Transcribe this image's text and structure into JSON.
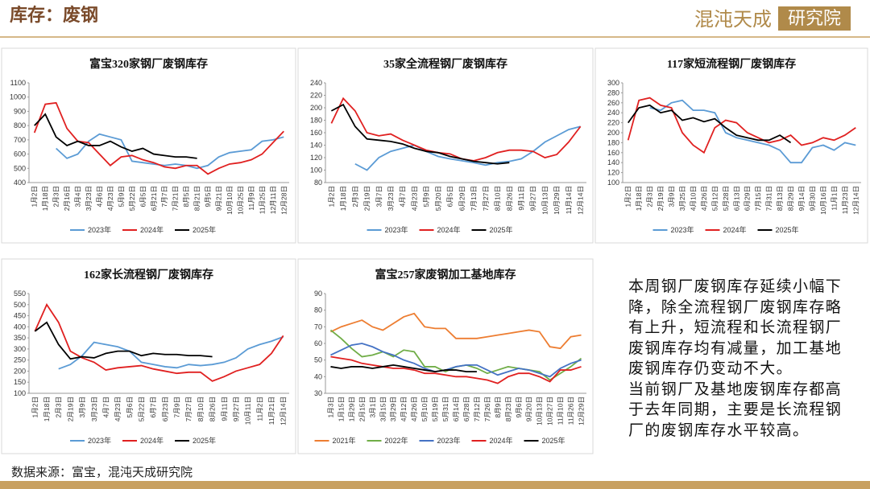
{
  "header": {
    "title": "库存：废钢",
    "logo_main": "混沌天成",
    "logo_box": "研究院"
  },
  "chart_data": [
    {
      "type": "line",
      "title": "富宝320家钢厂废钢库存",
      "categories": [
        "1月2日",
        "1月18日",
        "2月3日",
        "2月16日",
        "3月4日",
        "3月23日",
        "4月6日",
        "4月23日",
        "5月9日",
        "5月22日",
        "6月5日",
        "6月21日",
        "7月7日",
        "7月21日",
        "8月5日",
        "8月21日",
        "9月5日",
        "9月21日",
        "10月10日",
        "10月25日",
        "11月9日",
        "11月25日",
        "12月11日",
        "12月28日"
      ],
      "ylim": [
        400,
        1100
      ],
      "yticks": [
        400,
        500,
        600,
        700,
        800,
        900,
        1000,
        1100
      ],
      "series": [
        {
          "name": "2023年",
          "color": "#5b9bd5",
          "values": [
            null,
            null,
            640,
            570,
            600,
            690,
            740,
            720,
            700,
            550,
            540,
            530,
            520,
            530,
            520,
            500,
            520,
            580,
            610,
            620,
            630,
            690,
            700,
            720
          ]
        },
        {
          "name": "2024年",
          "color": "#e02020",
          "values": [
            750,
            950,
            960,
            780,
            690,
            680,
            600,
            520,
            580,
            590,
            560,
            540,
            510,
            500,
            520,
            520,
            460,
            500,
            530,
            540,
            560,
            600,
            680,
            760
          ]
        },
        {
          "name": "2025年",
          "color": "#000000",
          "values": [
            800,
            880,
            720,
            660,
            690,
            660,
            660,
            690,
            650,
            620,
            640,
            600,
            590,
            580,
            580,
            570,
            null,
            null,
            null,
            null,
            null,
            null,
            null,
            null
          ]
        }
      ]
    },
    {
      "type": "line",
      "title": "35家全流程钢厂废钢库存",
      "categories": [
        "1月2日",
        "1月18日",
        "2月3日",
        "2月19日",
        "3月7日",
        "3月23日",
        "4月7日",
        "4月23日",
        "5月9日",
        "5月20日",
        "6月5日",
        "6月29日",
        "7月13日",
        "7月27日",
        "8月10日",
        "8月26日",
        "9月11日",
        "9月27日",
        "10月13日",
        "10月29日",
        "11月14日",
        "12月14日"
      ],
      "ylim": [
        80,
        240
      ],
      "yticks": [
        80,
        100,
        120,
        140,
        160,
        180,
        200,
        220,
        240
      ],
      "series": [
        {
          "name": "2023年",
          "color": "#5b9bd5",
          "values": [
            null,
            null,
            110,
            100,
            120,
            130,
            135,
            140,
            130,
            122,
            118,
            115,
            112,
            108,
            112,
            114,
            118,
            130,
            145,
            155,
            165,
            170
          ]
        },
        {
          "name": "2024年",
          "color": "#e02020",
          "values": [
            175,
            215,
            195,
            160,
            155,
            158,
            148,
            140,
            132,
            128,
            126,
            118,
            115,
            120,
            128,
            132,
            132,
            130,
            120,
            125,
            145,
            170
          ]
        },
        {
          "name": "2025年",
          "color": "#000000",
          "values": [
            195,
            205,
            170,
            150,
            148,
            146,
            142,
            135,
            130,
            128,
            122,
            118,
            114,
            112,
            110,
            112,
            null,
            null,
            null,
            null,
            null,
            null
          ]
        }
      ]
    },
    {
      "type": "line",
      "title": "117家短流程钢厂废钢库存",
      "categories": [
        "1月2日",
        "1月18日",
        "2月3日",
        "2月19日",
        "3月9日",
        "3月25日",
        "4月10日",
        "4月26日",
        "5月12日",
        "5月28日",
        "6月13日",
        "6月29日",
        "7月15日",
        "7月31日",
        "8月13日",
        "8月29日",
        "9月14日",
        "9月30日",
        "10月16日",
        "11月1日",
        "11月23日",
        "12月14日"
      ],
      "ylim": [
        100,
        300
      ],
      "yticks": [
        100,
        120,
        140,
        160,
        180,
        200,
        220,
        240,
        260,
        280,
        300
      ],
      "series": [
        {
          "name": "2023年",
          "color": "#5b9bd5",
          "values": [
            null,
            null,
            250,
            245,
            260,
            265,
            245,
            245,
            240,
            200,
            190,
            185,
            180,
            175,
            165,
            140,
            140,
            170,
            175,
            165,
            180,
            175
          ]
        },
        {
          "name": "2024年",
          "color": "#e02020",
          "values": [
            185,
            265,
            270,
            255,
            250,
            200,
            175,
            160,
            210,
            225,
            220,
            200,
            190,
            180,
            185,
            195,
            175,
            180,
            190,
            185,
            195,
            210
          ]
        },
        {
          "name": "2025年",
          "color": "#000000",
          "values": [
            220,
            250,
            255,
            240,
            245,
            225,
            230,
            222,
            228,
            210,
            195,
            190,
            185,
            185,
            195,
            180,
            null,
            null,
            null,
            null,
            null,
            null
          ]
        }
      ]
    },
    {
      "type": "line",
      "title": "162家长流程钢厂废钢库存",
      "categories": [
        "1月2日",
        "1月18日",
        "2月3日",
        "2月19日",
        "3月9日",
        "3月23日",
        "4月7日",
        "4月23日",
        "5月6日",
        "5月22日",
        "6月7日",
        "6月23日",
        "7月9日",
        "7月27日",
        "8月10日",
        "8月26日",
        "9月11日",
        "9月27日",
        "10月11日",
        "11月2日",
        "11月21日",
        "12月14日"
      ],
      "ylim": [
        100,
        550
      ],
      "yticks": [
        100,
        150,
        200,
        250,
        300,
        350,
        400,
        450,
        500,
        550
      ],
      "series": [
        {
          "name": "2023年",
          "color": "#5b9bd5",
          "values": [
            null,
            null,
            210,
            230,
            270,
            330,
            320,
            310,
            290,
            240,
            230,
            220,
            215,
            230,
            225,
            230,
            240,
            260,
            300,
            320,
            335,
            355
          ]
        },
        {
          "name": "2024年",
          "color": "#e02020",
          "values": [
            380,
            500,
            420,
            290,
            260,
            240,
            205,
            215,
            220,
            225,
            210,
            200,
            190,
            195,
            195,
            155,
            175,
            200,
            215,
            230,
            280,
            360
          ]
        },
        {
          "name": "2025年",
          "color": "#000000",
          "values": [
            380,
            420,
            320,
            255,
            265,
            260,
            280,
            290,
            290,
            270,
            280,
            275,
            275,
            270,
            270,
            265,
            null,
            null,
            null,
            null,
            null,
            null
          ]
        }
      ]
    },
    {
      "type": "line",
      "title": "富宝257家废钢加工基地库存",
      "categories": [
        "1月3日",
        "1月15日",
        "1月29日",
        "2月15日",
        "3月1日",
        "3月15日",
        "3月29日",
        "4月12日",
        "4月26日",
        "5月10日",
        "5月19日",
        "5月31日",
        "6月14日",
        "6月28日",
        "7月12日",
        "7月26日",
        "8月9日",
        "8月23日",
        "9月6日",
        "9月20日",
        "10月13日",
        "10月27日",
        "11月10日",
        "11月26日",
        "12月29日"
      ],
      "ylim": [
        30,
        90
      ],
      "yticks": [
        30,
        40,
        50,
        60,
        70,
        80,
        90
      ],
      "series": [
        {
          "name": "2021年",
          "color": "#ed7d31",
          "values": [
            67,
            70,
            72,
            74,
            70,
            68,
            72,
            76,
            78,
            70,
            69,
            69,
            63,
            63,
            63,
            64,
            65,
            66,
            67,
            68,
            67,
            58,
            57,
            64,
            65
          ]
        },
        {
          "name": "2022年",
          "color": "#70ad47",
          "values": [
            68,
            63,
            57,
            52,
            53,
            55,
            52,
            56,
            55,
            46,
            46,
            43,
            46,
            47,
            45,
            42,
            44,
            46,
            45,
            44,
            43,
            38,
            42,
            46,
            51
          ]
        },
        {
          "name": "2023年",
          "color": "#4472c4",
          "values": [
            53,
            56,
            59,
            60,
            58,
            55,
            53,
            50,
            48,
            45,
            43,
            44,
            46,
            47,
            47,
            44,
            41,
            43,
            45,
            44,
            42,
            40,
            45,
            48,
            50
          ]
        },
        {
          "name": "2024年",
          "color": "#e02020",
          "values": [
            52,
            51,
            50,
            48,
            47,
            46,
            45,
            45,
            44,
            42,
            42,
            41,
            40,
            40,
            39,
            38,
            36,
            40,
            42,
            42,
            40,
            37,
            44,
            44,
            46
          ]
        },
        {
          "name": "2025年",
          "color": "#000000",
          "values": [
            46,
            45,
            46,
            46,
            45,
            46,
            47,
            46,
            45,
            44,
            43,
            44,
            44,
            43,
            43,
            null,
            null,
            null,
            null,
            null,
            null,
            null,
            null,
            null,
            null
          ]
        }
      ]
    }
  ],
  "commentary": [
    "本周钢厂废钢库存延续小幅下降，除全流程钢厂废钢库存略有上升，短流程和长流程钢厂废钢库存均有减量，加工基地废钢库存仍变动不大。",
    "当前钢厂及基地废钢库存都高于去年同期，主要是长流程钢厂的废钢库存水平较高。"
  ],
  "source": "数据来源：富宝，混沌天成研究院"
}
